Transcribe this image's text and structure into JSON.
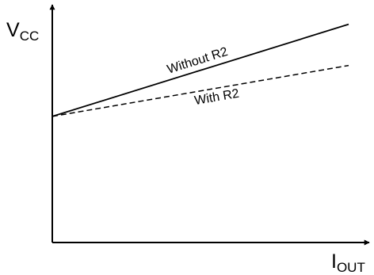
{
  "chart_data": {
    "type": "line",
    "title": "",
    "ylabel": {
      "main": "V",
      "sub": "CC"
    },
    "xlabel": {
      "main": "I",
      "sub": "OUT"
    },
    "xlim": [
      0,
      100
    ],
    "ylim": [
      0,
      100
    ],
    "grid": false,
    "legend": "none",
    "series": [
      {
        "name": "Without R2",
        "style": "solid",
        "color": "#000000",
        "x": [
          0,
          100
        ],
        "y": [
          52,
          90
        ]
      },
      {
        "name": "With R2",
        "style": "dashed",
        "color": "#000000",
        "x": [
          0,
          100
        ],
        "y": [
          52,
          73
        ]
      }
    ]
  }
}
